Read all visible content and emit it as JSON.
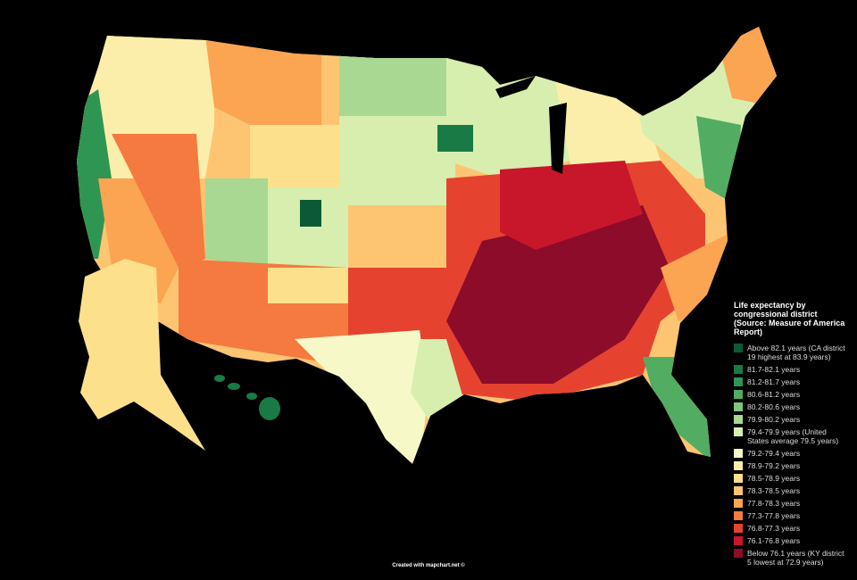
{
  "legend": {
    "title": "Life expectancy by congressional district (Source: Measure of America Report)",
    "items": [
      {
        "label": "Above 82.1 years (CA district 19 highest at 83.9 years)",
        "color": "#0b5a35"
      },
      {
        "label": "81.7-82.1 years",
        "color": "#197a45"
      },
      {
        "label": "81.2-81.7 years",
        "color": "#2f9553"
      },
      {
        "label": "80.6-81.2 years",
        "color": "#52ad62"
      },
      {
        "label": "80.2-80.6 years",
        "color": "#7fc47c"
      },
      {
        "label": "79.9-80.2 years",
        "color": "#a8d891"
      },
      {
        "label": "79.4-79.9 years (United States average 79.5 years)",
        "color": "#d8eeaf"
      },
      {
        "label": "79.2-79.4 years",
        "color": "#f6f8c8"
      },
      {
        "label": "78.9-79.2 years",
        "color": "#fbeeaa"
      },
      {
        "label": "78.5-78.9 years",
        "color": "#fde08b"
      },
      {
        "label": "78.3-78.5 years",
        "color": "#fdc572"
      },
      {
        "label": "77.8-78.3 years",
        "color": "#fba452"
      },
      {
        "label": "77.3-77.8 years",
        "color": "#f47a40"
      },
      {
        "label": "76.8-77.3 years",
        "color": "#e5432f"
      },
      {
        "label": "76.1-76.8 years",
        "color": "#c8172b"
      },
      {
        "label": "Below 76.1 years (KY district 5 lowest at 72.9 years)",
        "color": "#8c0c2a"
      }
    ]
  },
  "credit": "Created with mapchart.net ©"
}
